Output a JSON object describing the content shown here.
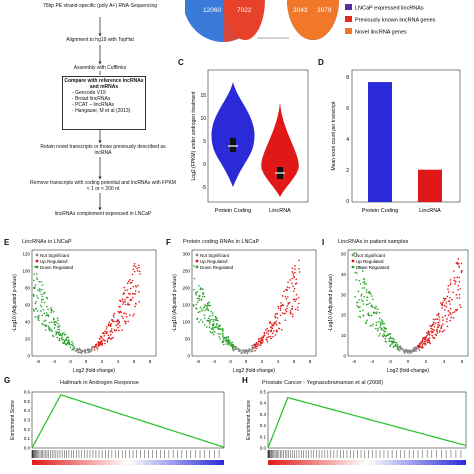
{
  "flow": {
    "step1": "75bp PE strand-specific (poly A+) RNA-Sequencing",
    "step2": "Alignment to hg19 with TopHat",
    "step3": "Assembly with Cufflinks",
    "compare_title": "Compare with reference lncRNAs and mRNAs",
    "compare_items": [
      "Gencode V19",
      "Broad lincRNAs",
      "PCAT – lincRNAs",
      "Hangauer, M et al (2013)"
    ],
    "step4": "Retain novel transcripts or those previously described as lncRNA",
    "step5": "Remove transcripts with coding potential and lncRNAs with FPKM < 1 or < 200 nt",
    "step6": "lincRNAs complement expressed in LNCaP"
  },
  "venn": {
    "left_a": "12060",
    "left_b": "7022",
    "right_a": "3043",
    "right_b": "3979",
    "legend": [
      {
        "label": "LNCaP expressed lincRNAs",
        "color": "#5a2ca0"
      },
      {
        "label": "Previously known lincRNA genes",
        "color": "#e0281e"
      },
      {
        "label": "Novel lincRNA genes",
        "color": "#f07828"
      }
    ]
  },
  "panel_c": {
    "letter": "C",
    "ylabel": "Log2 (FPKM) under androgen treatment",
    "yticks": [
      "-5",
      "0",
      "5",
      "10",
      "15"
    ],
    "categories": [
      "Protein Coding",
      "LincRNA"
    ],
    "colors": [
      "#2a2ad8",
      "#e01818"
    ]
  },
  "panel_d": {
    "letter": "D",
    "ylabel": "Mean exon count per transcript",
    "yticks": [
      "0",
      "2",
      "4",
      "6",
      "8"
    ],
    "categories": [
      "Protein Coding",
      "LincRNA"
    ],
    "colors": [
      "#2a2ad8",
      "#e01818"
    ]
  },
  "chart_data": [
    {
      "type": "bar",
      "panel": "D",
      "categories": [
        "Protein Coding",
        "LincRNA"
      ],
      "values": [
        7.8,
        2.1
      ],
      "ylabel": "Mean exon count per transcript",
      "ylim": [
        0,
        8.5
      ],
      "colors": [
        "#2a2ad8",
        "#e01818"
      ]
    }
  ],
  "volcano": [
    {
      "letter": "E",
      "title": "LincRNAs in LNCaP",
      "xticks": [
        "-6",
        "-4",
        "-2",
        "0",
        "2",
        "4",
        "6",
        "8"
      ],
      "yticks": [
        "0",
        "20",
        "40",
        "60",
        "80",
        "100",
        "120"
      ]
    },
    {
      "letter": "F",
      "title": "Protein coding RNAs in LNCaP",
      "xticks": [
        "-6",
        "-4",
        "-2",
        "0",
        "2",
        "4",
        "6",
        "8"
      ],
      "yticks": [
        "0",
        "50",
        "100",
        "150",
        "200",
        "250",
        "300"
      ]
    },
    {
      "letter": "I",
      "title": "LincRNAs in patient samples",
      "xticks": [
        "-6",
        "-4",
        "-2",
        "0",
        "2",
        "4",
        "6"
      ],
      "yticks": [
        "0",
        "10",
        "20",
        "30",
        "40",
        "50"
      ]
    }
  ],
  "volcano_common": {
    "xlabel": "Log2 (fold-change)",
    "ylabel": "-Log10 (Adjusted p-value)",
    "legend": [
      {
        "label": "Not Significant",
        "color": "#888888"
      },
      {
        "label": "Up Regulated",
        "color": "#e01818"
      },
      {
        "label": "Down Regulated",
        "color": "#28a028"
      }
    ]
  },
  "gsea": [
    {
      "letter": "G",
      "title": "Hallmark in Androgen Response",
      "ylabel": "Enrichment Score",
      "yticks": [
        "0.0",
        "0.1",
        "0.2",
        "0.3",
        "0.4",
        "0.5",
        "0.6"
      ]
    },
    {
      "letter": "H",
      "title": "Prostate Cancer - Yegnasubramanian et al (2008)",
      "ylabel": "Enrichment Score",
      "yticks": [
        "0.0",
        "0.1",
        "0.2",
        "0.3",
        "0.4",
        "0.5"
      ]
    }
  ]
}
